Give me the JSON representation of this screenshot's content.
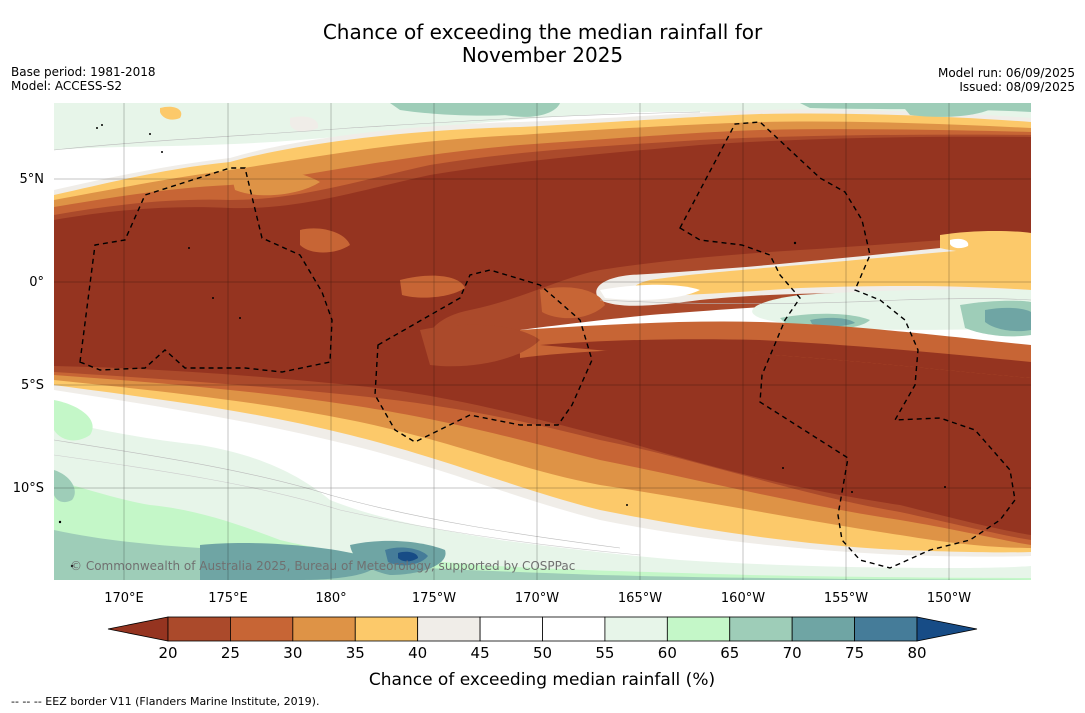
{
  "title_line1": "Chance of exceeding the median rainfall for",
  "title_line2": "November 2025",
  "meta_left": [
    "Base period: 1981-2018",
    "Model: ACCESS-S2"
  ],
  "meta_right": [
    "Model run: 06/09/2025",
    "Issued: 08/09/2025"
  ],
  "copyright": "© Commonwealth of Australia 2025, Bureau of Meteorology, supported by COSPPac",
  "lon_labels": [
    "170°E",
    "175°E",
    "180°",
    "175°W",
    "170°W",
    "165°W",
    "160°W",
    "155°W",
    "150°W"
  ],
  "lat_labels": [
    "5°N",
    "0°",
    "5°S",
    "10°S"
  ],
  "colorbar": {
    "label": "Chance of exceeding median rainfall (%)",
    "ticks": [
      "20",
      "25",
      "30",
      "35",
      "40",
      "45",
      "50",
      "55",
      "60",
      "65",
      "70",
      "75",
      "80"
    ],
    "colors": [
      "#953420",
      "#ab4a2b",
      "#c76535",
      "#de9346",
      "#fcc96a",
      "#f0ede8",
      "#ffffff",
      "#ffffff",
      "#e7f5e9",
      "#c4f7c8",
      "#9ecdb8",
      "#6fa5a4",
      "#457c99",
      "#174c86"
    ]
  },
  "footer": "--  --  -- EEZ border V11 (Flanders Marine Institute, 2019)."
}
